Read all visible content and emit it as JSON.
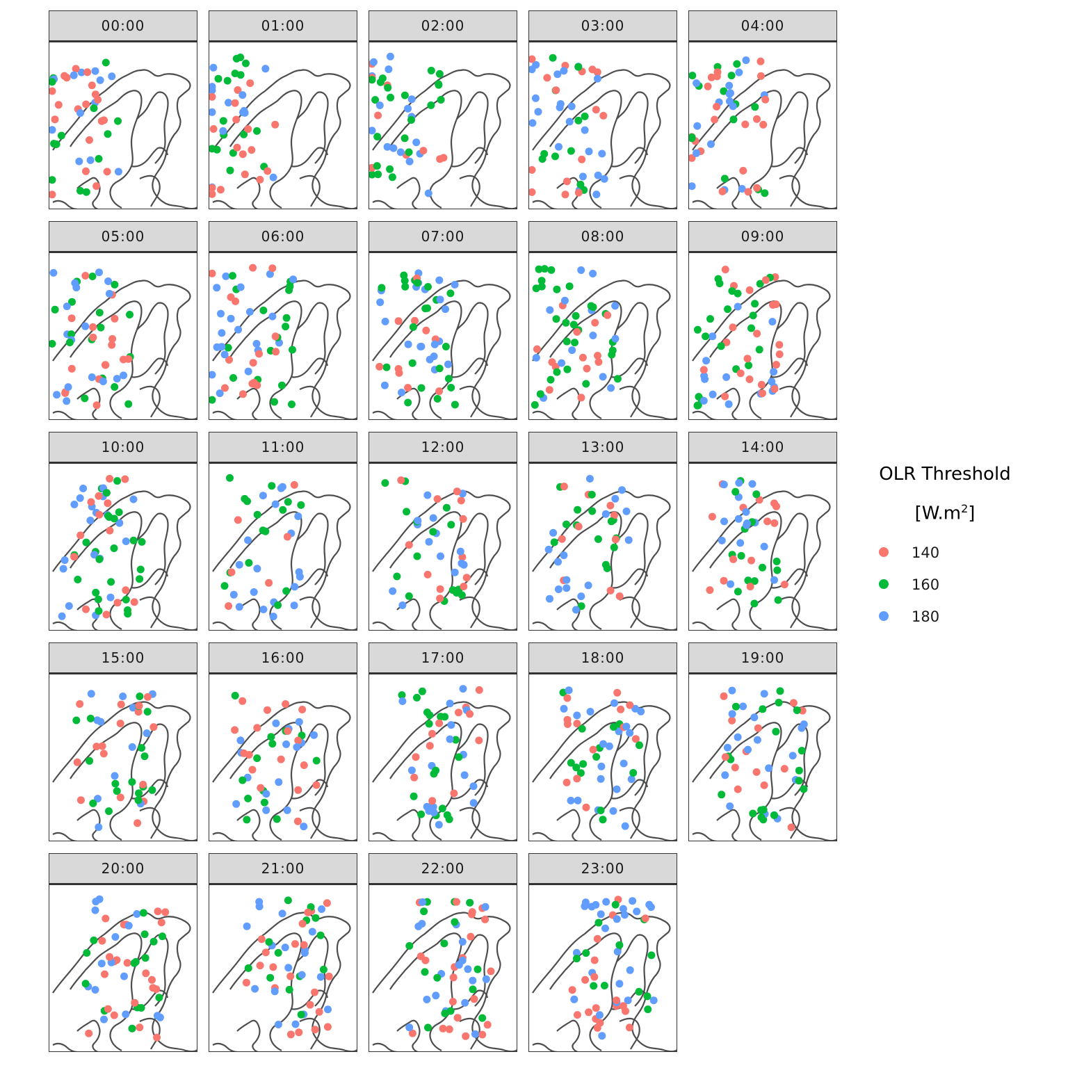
{
  "panels": [
    "00:00",
    "01:00",
    "02:00",
    "03:00",
    "04:00",
    "05:00",
    "06:00",
    "07:00",
    "08:00",
    "09:00",
    "10:00",
    "11:00",
    "12:00",
    "13:00",
    "14:00",
    "15:00",
    "16:00",
    "17:00",
    "18:00",
    "19:00",
    "20:00",
    "21:00",
    "22:00",
    "23:00"
  ],
  "legend": {
    "title_line1": "OLR Threshold",
    "title_line2_base": "[W.m",
    "title_line2_sup": "2",
    "title_line2_end": "]",
    "items": [
      {
        "label": "140",
        "color": "#f8766d"
      },
      {
        "label": "160",
        "color": "#00ba38"
      },
      {
        "label": "180",
        "color": "#619cff"
      }
    ]
  },
  "colors": {
    "outline": "#4d4d4d",
    "strip_fill": "#d9d9d9",
    "frame": "#333333"
  }
}
